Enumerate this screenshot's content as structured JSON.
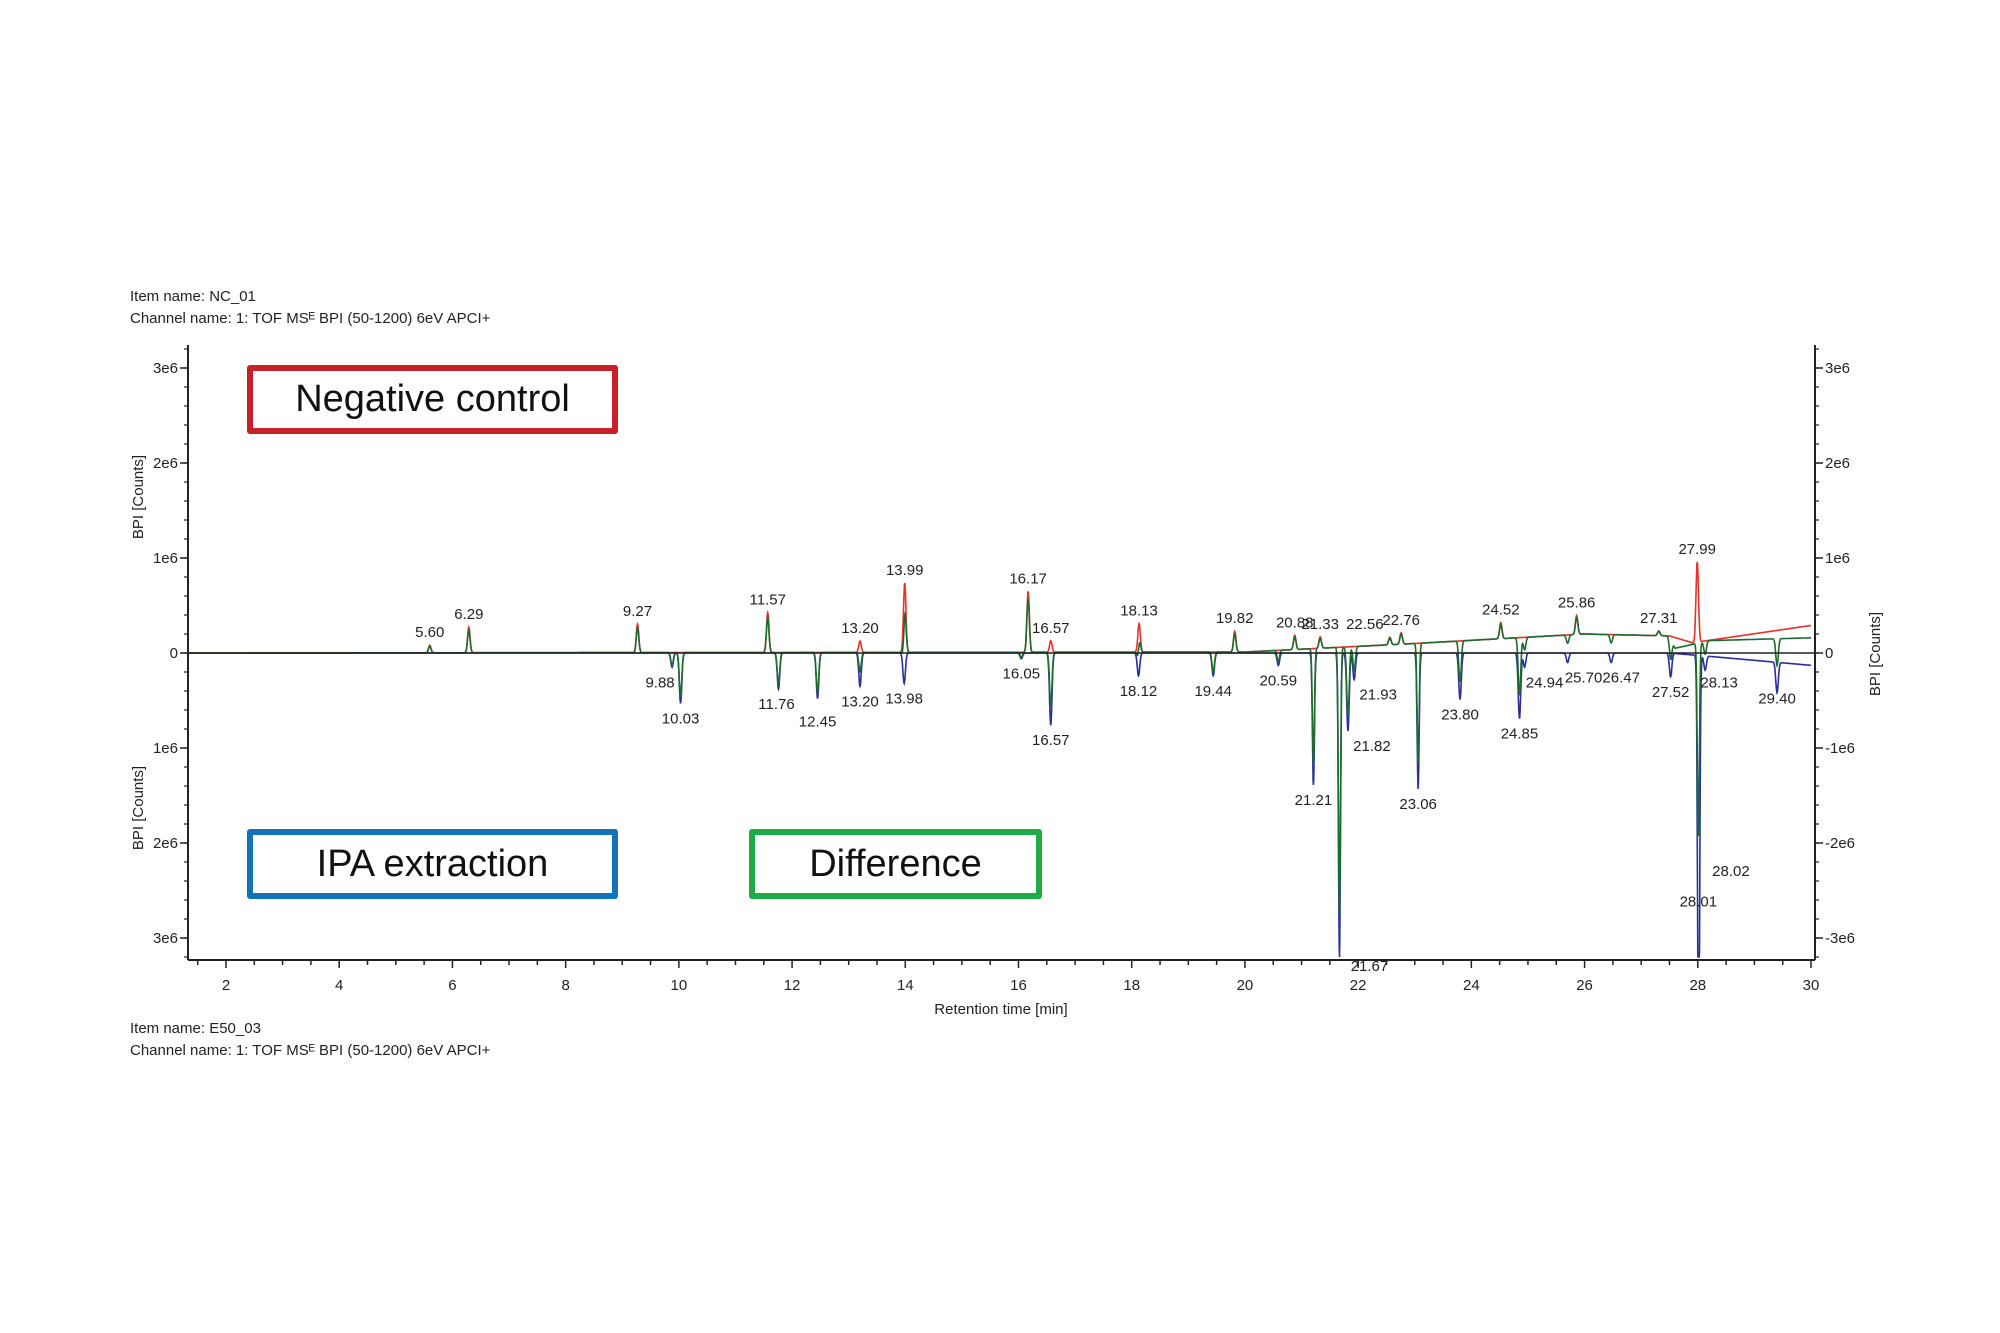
{
  "top_meta": {
    "item_name": "Item name: NC_01",
    "channel_name": "Channel name: 1: TOF MSᴱ BPI (50-1200) 6eV APCI+"
  },
  "bottom_meta": {
    "item_name": "Item name: E50_03",
    "channel_name": "Channel name: 1: TOF MSᴱ BPI (50-1200) 6eV APCI+"
  },
  "boxes": {
    "negative_control": {
      "label": "Negative control",
      "color": "#c8202a"
    },
    "ipa_extraction": {
      "label": "IPA extraction",
      "color": "#1472b8"
    },
    "difference": {
      "label": "Difference",
      "color": "#1fac48"
    }
  },
  "chart_data": {
    "type": "line",
    "xlabel": "Retention time [min]",
    "ylabel_left_top": "BPI [Counts]",
    "ylabel_left_bottom": "BPI [Counts]",
    "ylabel_right": "BPI [Counts]",
    "xlim": [
      1.35,
      30
    ],
    "ylim": [
      -3200000.0,
      3200000.0
    ],
    "x_ticks": [
      "2",
      "4",
      "6",
      "8",
      "10",
      "12",
      "14",
      "16",
      "18",
      "20",
      "22",
      "24",
      "26",
      "28",
      "30"
    ],
    "left_y_ticks": [
      {
        "v": 3000000.0,
        "label": "3e6"
      },
      {
        "v": 2000000.0,
        "label": "2e6"
      },
      {
        "v": 1000000.0,
        "label": "1e6"
      },
      {
        "v": 0,
        "label": "0"
      },
      {
        "v": -1000000.0,
        "label": "1e6"
      },
      {
        "v": -2000000.0,
        "label": "2e6"
      },
      {
        "v": -3000000.0,
        "label": "3e6"
      }
    ],
    "right_y_ticks": [
      {
        "v": 3000000.0,
        "label": "3e6"
      },
      {
        "v": 2000000.0,
        "label": "2e6"
      },
      {
        "v": 1000000.0,
        "label": "1e6"
      },
      {
        "v": 0,
        "label": "0"
      },
      {
        "v": -1000000.0,
        "label": "-1e6"
      },
      {
        "v": -2000000.0,
        "label": "-2e6"
      },
      {
        "v": -3000000.0,
        "label": "-3e6"
      }
    ],
    "colors": {
      "negative_control": "#e8312c",
      "ipa_extraction": "#2b2f9a",
      "difference": "#1d6b2e"
    },
    "baselines": {
      "negative_control": [
        [
          1.35,
          0
        ],
        [
          20,
          10000.0
        ],
        [
          23,
          100000.0
        ],
        [
          26,
          200000.0
        ],
        [
          27.5,
          180000.0
        ],
        [
          27.95,
          100000.0
        ],
        [
          28.05,
          120000.0
        ],
        [
          30,
          290000.0
        ]
      ],
      "ipa_extraction": [
        [
          1.35,
          0
        ],
        [
          27.5,
          0
        ],
        [
          28.1,
          -30000.0
        ],
        [
          30,
          -130000.0
        ]
      ],
      "difference": [
        [
          1.35,
          0
        ],
        [
          20,
          10000.0
        ],
        [
          23,
          100000.0
        ],
        [
          26,
          200000.0
        ],
        [
          27.5,
          180000.0
        ],
        [
          27.6,
          50000.0
        ],
        [
          28.2,
          130000.0
        ],
        [
          30,
          160000.0
        ]
      ]
    },
    "peaks_positive": [
      {
        "rt": 5.6,
        "label": "5.60",
        "y": 80000.0
      },
      {
        "rt": 6.29,
        "label": "6.29",
        "y": 270000.0
      },
      {
        "rt": 9.27,
        "label": "9.27",
        "y": 300000.0
      },
      {
        "rt": 11.57,
        "label": "11.57",
        "y": 420000.0
      },
      {
        "rt": 13.2,
        "label": "13.20",
        "y": 120000.0
      },
      {
        "rt": 13.99,
        "label": "13.99",
        "y": 730000.0
      },
      {
        "rt": 16.17,
        "label": "16.17",
        "y": 640000.0
      },
      {
        "rt": 16.57,
        "label": "16.57",
        "y": 120000.0
      },
      {
        "rt": 18.13,
        "label": "18.13",
        "y": 300000.0
      },
      {
        "rt": 19.82,
        "label": "19.82",
        "y": 220000.0
      },
      {
        "rt": 20.88,
        "label": "20.88",
        "y": 150000.0
      },
      {
        "rt": 21.33,
        "label": "21.33",
        "y": 120000.0
      },
      {
        "rt": 22.56,
        "label": "22.56",
        "y": 80000.0
      },
      {
        "rt": 22.76,
        "label": "22.76",
        "y": 120000.0
      },
      {
        "rt": 24.52,
        "label": "24.52",
        "y": 170000.0
      },
      {
        "rt": 25.86,
        "label": "25.86",
        "y": 200000.0
      },
      {
        "rt": 27.31,
        "label": "27.31",
        "y": 50000.0
      },
      {
        "rt": 27.99,
        "label": "27.99",
        "y": 850000.0
      }
    ],
    "peaks_negative": [
      {
        "rt": 9.88,
        "label": "9.88",
        "y": -150000.0
      },
      {
        "rt": 10.03,
        "label": "10.03",
        "y": -530000.0
      },
      {
        "rt": 11.76,
        "label": "11.76",
        "y": -380000.0
      },
      {
        "rt": 12.45,
        "label": "12.45",
        "y": -480000.0
      },
      {
        "rt": 13.2,
        "label": "13.20",
        "y": -350000.0
      },
      {
        "rt": 13.98,
        "label": "13.98",
        "y": -320000.0
      },
      {
        "rt": 16.05,
        "label": "16.05",
        "y": -60000.0
      },
      {
        "rt": 16.57,
        "label": "16.57",
        "y": -760000.0
      },
      {
        "rt": 18.12,
        "label": "18.12",
        "y": -240000.0
      },
      {
        "rt": 19.44,
        "label": "19.44",
        "y": -240000.0
      },
      {
        "rt": 20.59,
        "label": "20.59",
        "y": -130000.0
      },
      {
        "rt": 21.21,
        "label": "21.21",
        "y": -1390000.0
      },
      {
        "rt": 21.67,
        "label": "21.67",
        "y": -3200000.0
      },
      {
        "rt": 21.82,
        "label": "21.82",
        "y": -820000.0
      },
      {
        "rt": 21.93,
        "label": "21.93",
        "y": -280000.0
      },
      {
        "rt": 23.06,
        "label": "23.06",
        "y": -1430000.0
      },
      {
        "rt": 23.8,
        "label": "23.80",
        "y": -490000.0
      },
      {
        "rt": 24.85,
        "label": "24.85",
        "y": -690000.0
      },
      {
        "rt": 24.94,
        "label": "24.94",
        "y": -150000.0
      },
      {
        "rt": 25.7,
        "label": "25.70",
        "y": -100000.0
      },
      {
        "rt": 26.47,
        "label": "26.47",
        "y": -100000.0
      },
      {
        "rt": 27.52,
        "label": "27.52",
        "y": -250000.0
      },
      {
        "rt": 28.01,
        "label": "28.01",
        "y": -2310000.0
      },
      {
        "rt": 28.02,
        "label": "28.02",
        "y": -2200000.0
      },
      {
        "rt": 28.13,
        "label": "28.13",
        "y": -150000.0
      },
      {
        "rt": 29.4,
        "label": "29.40",
        "y": -320000.0
      }
    ]
  }
}
